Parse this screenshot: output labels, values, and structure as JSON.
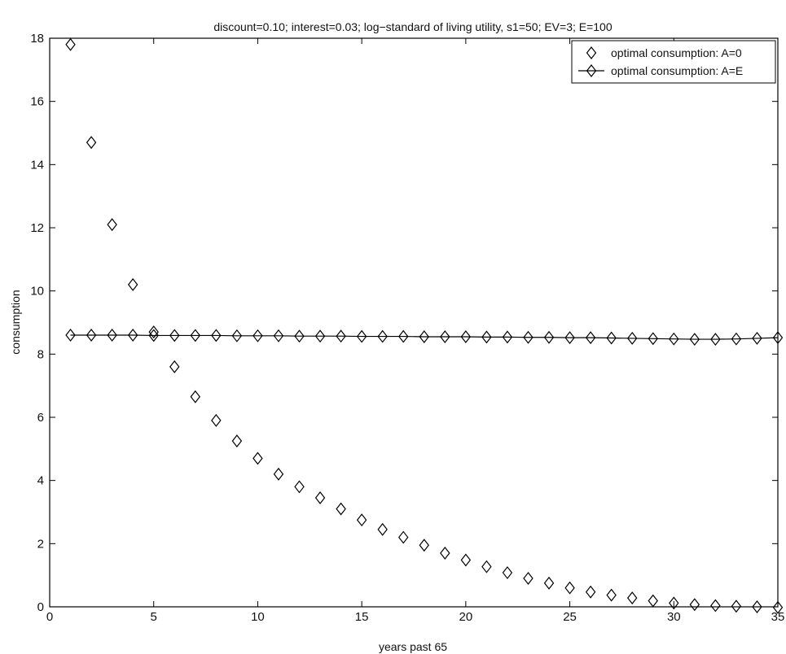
{
  "chart_data": {
    "type": "scatter",
    "title": "discount=0.10; interest=0.03; log−standard of living utility, s1=50; EV=3; E=100",
    "xlabel": "years past 65",
    "ylabel": "consumption",
    "xlim": [
      0,
      35
    ],
    "ylim": [
      0,
      18
    ],
    "xticks": [
      0,
      5,
      10,
      15,
      20,
      25,
      30,
      35
    ],
    "yticks": [
      0,
      2,
      4,
      6,
      8,
      10,
      12,
      14,
      16,
      18
    ],
    "grid": false,
    "legend_position": "top-right",
    "marker": "diamond",
    "series": [
      {
        "name": "optimal consumption: A=0",
        "style": "markers",
        "x": [
          1,
          2,
          3,
          4,
          5,
          6,
          7,
          8,
          9,
          10,
          11,
          12,
          13,
          14,
          15,
          16,
          17,
          18,
          19,
          20,
          21,
          22,
          23,
          24,
          25,
          26,
          27,
          28,
          29,
          30,
          31,
          32,
          33,
          34,
          35
        ],
        "values": [
          17.8,
          14.7,
          12.1,
          10.2,
          8.7,
          7.6,
          6.65,
          5.9,
          5.25,
          4.7,
          4.2,
          3.8,
          3.45,
          3.1,
          2.75,
          2.45,
          2.2,
          1.95,
          1.7,
          1.48,
          1.27,
          1.08,
          0.9,
          0.75,
          0.6,
          0.47,
          0.37,
          0.28,
          0.19,
          0.12,
          0.07,
          0.04,
          0.02,
          0.0,
          -0.02
        ]
      },
      {
        "name": "optimal consumption: A=E",
        "style": "line+markers",
        "x": [
          1,
          2,
          3,
          4,
          5,
          6,
          7,
          8,
          9,
          10,
          11,
          12,
          13,
          14,
          15,
          16,
          17,
          18,
          19,
          20,
          21,
          22,
          23,
          24,
          25,
          26,
          27,
          28,
          29,
          30,
          31,
          32,
          33,
          34,
          35
        ],
        "values": [
          8.6,
          8.6,
          8.6,
          8.6,
          8.59,
          8.59,
          8.59,
          8.59,
          8.58,
          8.58,
          8.58,
          8.57,
          8.57,
          8.57,
          8.56,
          8.56,
          8.56,
          8.55,
          8.55,
          8.55,
          8.54,
          8.54,
          8.53,
          8.53,
          8.52,
          8.52,
          8.51,
          8.5,
          8.49,
          8.48,
          8.47,
          8.47,
          8.48,
          8.5,
          8.52
        ]
      }
    ]
  }
}
